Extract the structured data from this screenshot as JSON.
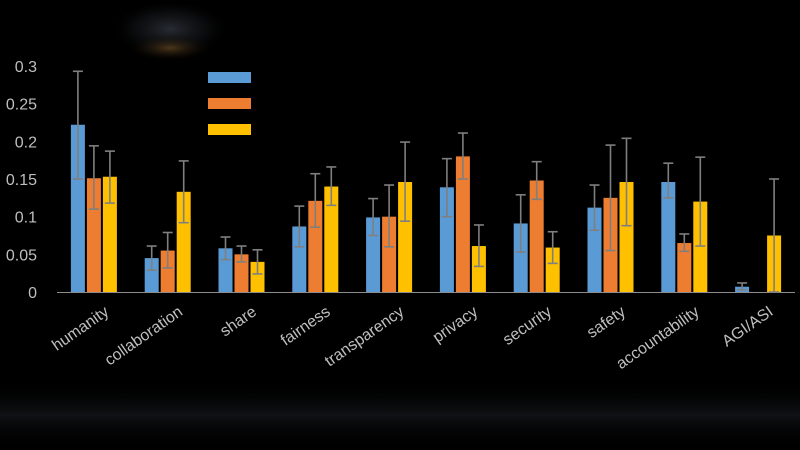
{
  "chart_data": {
    "type": "bar",
    "title": "",
    "xlabel": "",
    "ylabel": "",
    "ylim": [
      0,
      0.3
    ],
    "yticks": [
      0,
      0.05,
      0.1,
      0.15,
      0.2,
      0.25,
      0.3
    ],
    "ytick_labels": [
      "0",
      "0.05",
      "0.1",
      "0.15",
      "0.2",
      "0.25",
      "0.3"
    ],
    "categories": [
      "humanity",
      "collaboration",
      "share",
      "fairness",
      "transparency",
      "privacy",
      "security",
      "safety",
      "accountability",
      "AGI/ASI"
    ],
    "legend": {
      "placement": "top-left",
      "labels_visible": false
    },
    "series": [
      {
        "name": "",
        "color": "#5B9BD5",
        "values": [
          0.222,
          0.045,
          0.058,
          0.087,
          0.099,
          0.139,
          0.091,
          0.112,
          0.146,
          0.007
        ],
        "err_low": [
          0.072,
          0.016,
          0.015,
          0.027,
          0.024,
          0.039,
          0.038,
          0.03,
          0.021,
          0.004
        ],
        "err_high": [
          0.071,
          0.016,
          0.015,
          0.027,
          0.025,
          0.038,
          0.038,
          0.03,
          0.025,
          0.005
        ]
      },
      {
        "name": "",
        "color": "#ED7D31",
        "values": [
          0.151,
          0.055,
          0.05,
          0.121,
          0.1,
          0.18,
          0.148,
          0.125,
          0.065,
          0
        ],
        "err_low": [
          0.041,
          0.023,
          0.01,
          0.035,
          0.04,
          0.03,
          0.025,
          0.07,
          0.011,
          0
        ],
        "err_high": [
          0.043,
          0.024,
          0.011,
          0.036,
          0.042,
          0.031,
          0.025,
          0.07,
          0.012,
          0
        ]
      },
      {
        "name": "",
        "color": "#FFC000",
        "values": [
          0.153,
          0.133,
          0.04,
          0.14,
          0.146,
          0.061,
          0.059,
          0.146,
          0.12,
          0.075
        ],
        "err_low": [
          0.035,
          0.041,
          0.016,
          0.025,
          0.052,
          0.027,
          0.021,
          0.058,
          0.059,
          0.075
        ],
        "err_high": [
          0.034,
          0.041,
          0.016,
          0.026,
          0.053,
          0.028,
          0.021,
          0.058,
          0.059,
          0.075
        ]
      }
    ]
  }
}
